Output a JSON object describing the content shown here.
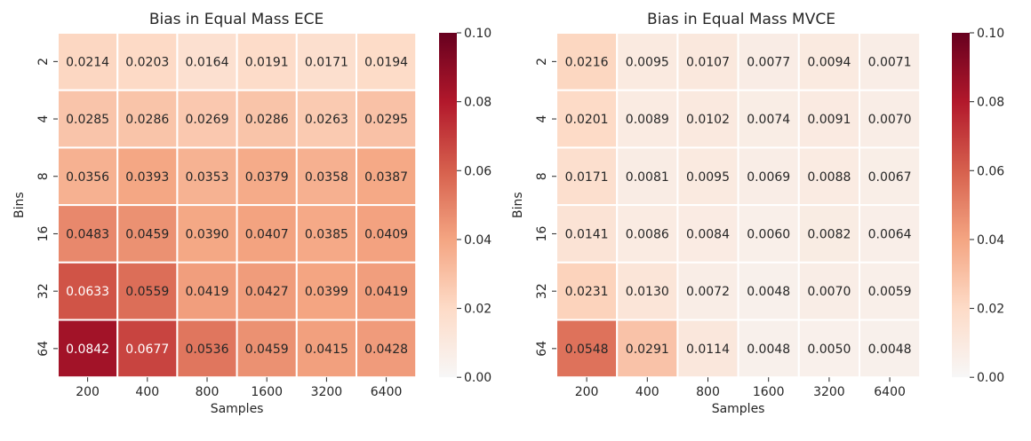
{
  "chart_data": [
    {
      "type": "heatmap",
      "title": "Bias in Equal Mass ECE",
      "xlabel": "Samples",
      "ylabel": "Bins",
      "x": [
        "200",
        "400",
        "800",
        "1600",
        "3200",
        "6400"
      ],
      "y": [
        "2",
        "4",
        "8",
        "16",
        "32",
        "64"
      ],
      "values": [
        [
          0.0214,
          0.0203,
          0.0164,
          0.0191,
          0.0171,
          0.0194
        ],
        [
          0.0285,
          0.0286,
          0.0269,
          0.0286,
          0.0263,
          0.0295
        ],
        [
          0.0356,
          0.0393,
          0.0353,
          0.0379,
          0.0358,
          0.0387
        ],
        [
          0.0483,
          0.0459,
          0.039,
          0.0407,
          0.0385,
          0.0409
        ],
        [
          0.0633,
          0.0559,
          0.0419,
          0.0427,
          0.0399,
          0.0419
        ],
        [
          0.0842,
          0.0677,
          0.0536,
          0.0459,
          0.0415,
          0.0428
        ]
      ],
      "labels": [
        [
          "0.0214",
          "0.0203",
          "0.0164",
          "0.0191",
          "0.0171",
          "0.0194"
        ],
        [
          "0.0285",
          "0.0286",
          "0.0269",
          "0.0286",
          "0.0263",
          "0.0295"
        ],
        [
          "0.0356",
          "0.0393",
          "0.0353",
          "0.0379",
          "0.0358",
          "0.0387"
        ],
        [
          "0.0483",
          "0.0459",
          "0.0390",
          "0.0407",
          "0.0385",
          "0.0409"
        ],
        [
          "0.0633",
          "0.0559",
          "0.0419",
          "0.0427",
          "0.0399",
          "0.0419"
        ],
        [
          "0.0842",
          "0.0677",
          "0.0536",
          "0.0459",
          "0.0415",
          "0.0428"
        ]
      ],
      "colorbar": {
        "range": [
          0.0,
          0.1
        ],
        "ticks": [
          "0.00",
          "0.02",
          "0.04",
          "0.06",
          "0.08",
          "0.10"
        ],
        "colormap": "RdBu_r (centered at 0)"
      }
    },
    {
      "type": "heatmap",
      "title": "Bias in Equal Mass MVCE",
      "xlabel": "Samples",
      "ylabel": "Bins",
      "x": [
        "200",
        "400",
        "800",
        "1600",
        "3200",
        "6400"
      ],
      "y": [
        "2",
        "4",
        "8",
        "16",
        "32",
        "64"
      ],
      "values": [
        [
          0.0216,
          0.0095,
          0.0107,
          0.0077,
          0.0094,
          0.0071
        ],
        [
          0.0201,
          0.0089,
          0.0102,
          0.0074,
          0.0091,
          0.007
        ],
        [
          0.0171,
          0.0081,
          0.0095,
          0.0069,
          0.0088,
          0.0067
        ],
        [
          0.0141,
          0.0086,
          0.0084,
          0.006,
          0.0082,
          0.0064
        ],
        [
          0.0231,
          0.013,
          0.0072,
          0.0048,
          0.007,
          0.0059
        ],
        [
          0.0548,
          0.0291,
          0.0114,
          0.0048,
          0.005,
          0.0048
        ]
      ],
      "labels": [
        [
          "0.0216",
          "0.0095",
          "0.0107",
          "0.0077",
          "0.0094",
          "0.0071"
        ],
        [
          "0.0201",
          "0.0089",
          "0.0102",
          "0.0074",
          "0.0091",
          "0.0070"
        ],
        [
          "0.0171",
          "0.0081",
          "0.0095",
          "0.0069",
          "0.0088",
          "0.0067"
        ],
        [
          "0.0141",
          "0.0086",
          "0.0084",
          "0.0060",
          "0.0082",
          "0.0064"
        ],
        [
          "0.0231",
          "0.0130",
          "0.0072",
          "0.0048",
          "0.0070",
          "0.0059"
        ],
        [
          "0.0548",
          "0.0291",
          "0.0114",
          "0.0048",
          "0.0050",
          "0.0048"
        ]
      ],
      "colorbar": {
        "range": [
          0.0,
          0.1
        ],
        "ticks": [
          "0.00",
          "0.02",
          "0.04",
          "0.06",
          "0.08",
          "0.10"
        ],
        "colormap": "RdBu_r (centered at 0)"
      }
    }
  ]
}
